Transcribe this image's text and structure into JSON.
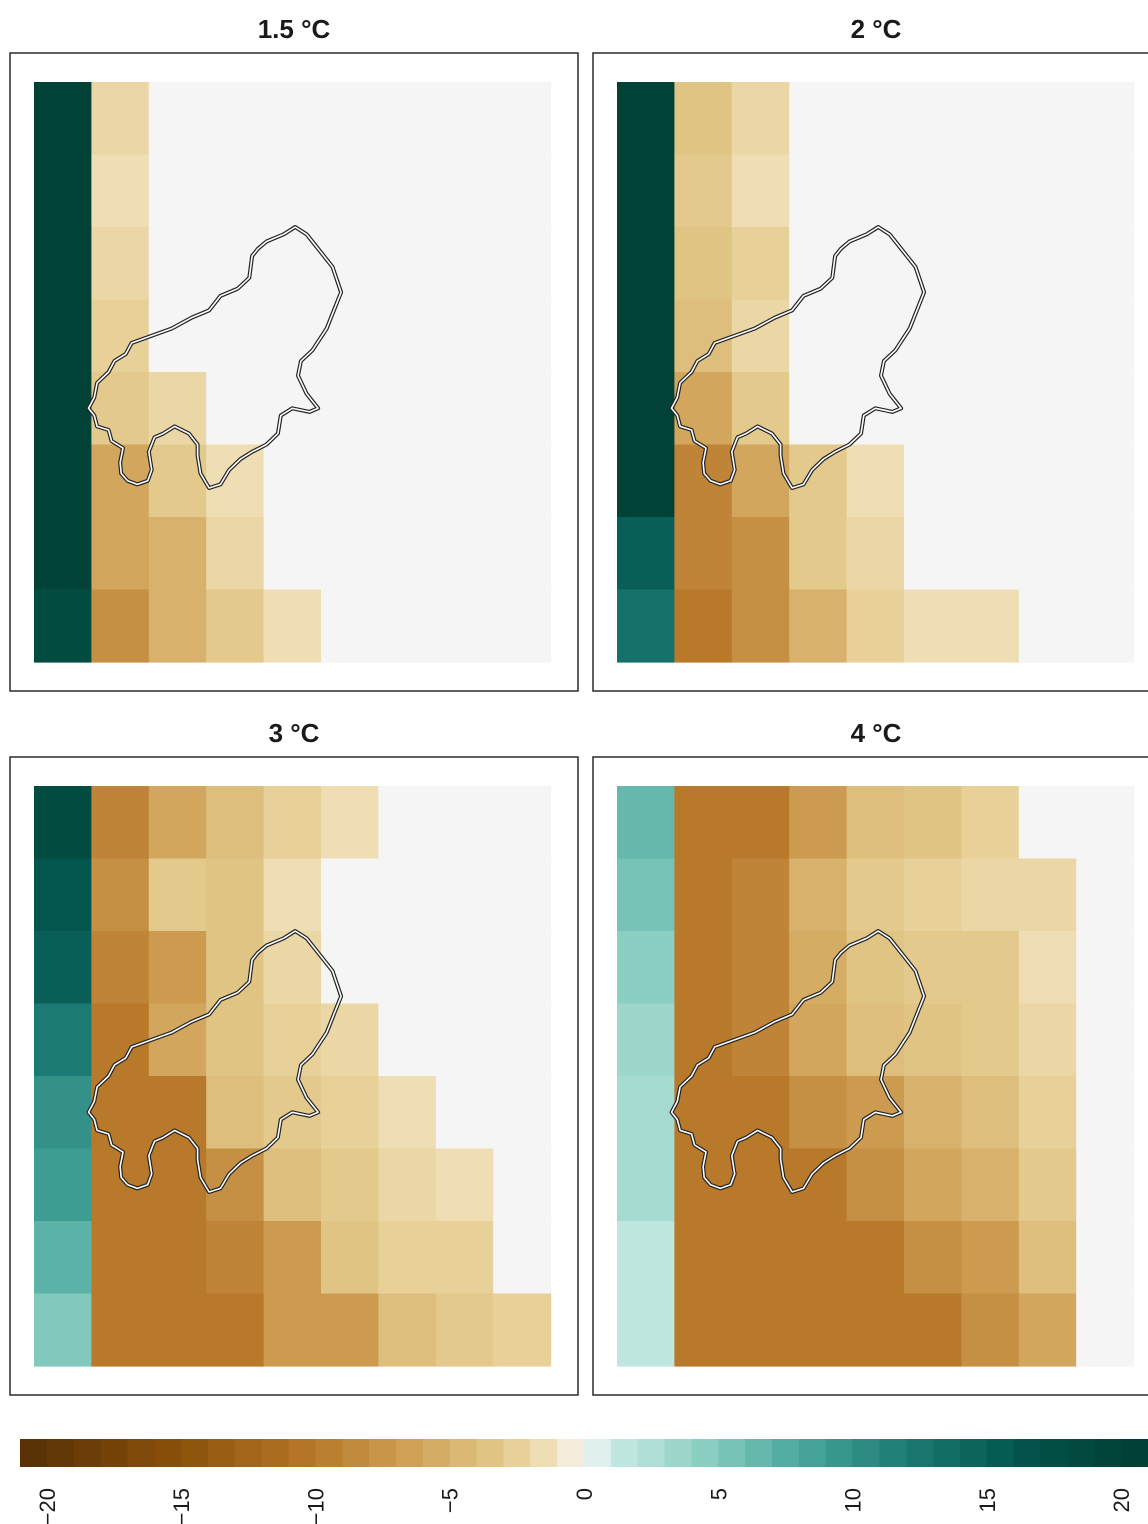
{
  "colorbar": {
    "ticks": [
      -20,
      -15,
      -10,
      -5,
      0,
      5,
      10,
      15,
      20
    ],
    "tick_labels": [
      "−20",
      "−15",
      "−10",
      "−5",
      "0",
      "5",
      "10",
      "15",
      "20"
    ],
    "min": -21,
    "max": 21,
    "palette": [
      {
        "v": -21,
        "c": "#543005"
      },
      {
        "v": -15,
        "c": "#8c510a"
      },
      {
        "v": -10,
        "c": "#b8792a"
      },
      {
        "v": -6,
        "c": "#d2a65c"
      },
      {
        "v": -3,
        "c": "#e3ca8c"
      },
      {
        "v": -1,
        "c": "#f3e4c0"
      },
      {
        "v": 0,
        "c": "#f5f5f5"
      },
      {
        "v": 1,
        "c": "#c9ebe4"
      },
      {
        "v": 4,
        "c": "#94d3c7"
      },
      {
        "v": 8,
        "c": "#4aa89d"
      },
      {
        "v": 12,
        "c": "#1b7a73"
      },
      {
        "v": 16,
        "c": "#03564d"
      },
      {
        "v": 21,
        "c": "#003c30"
      }
    ]
  },
  "chart_data": [
    {
      "type": "heatmap",
      "title": "1.5 °C",
      "grid": [
        [
          20,
          -2,
          0,
          0,
          0,
          0,
          0,
          0,
          0
        ],
        [
          20,
          -1.5,
          0,
          0,
          0,
          0,
          0,
          0,
          0
        ],
        [
          20,
          -2,
          0,
          0,
          0,
          0,
          0,
          0,
          0
        ],
        [
          20,
          -2.5,
          0,
          0,
          0,
          0,
          0,
          0,
          0
        ],
        [
          20,
          -3,
          -2,
          0,
          0,
          0,
          0,
          0,
          0
        ],
        [
          20,
          -6,
          -3,
          -1.5,
          0,
          0,
          0,
          0,
          0
        ],
        [
          20,
          -6,
          -5,
          -2,
          0,
          0,
          0,
          0,
          0
        ],
        [
          18,
          -8,
          -5,
          -3,
          -1.5,
          0,
          0,
          0,
          0
        ]
      ]
    },
    {
      "type": "heatmap",
      "title": "2 °C",
      "grid": [
        [
          20,
          -3.5,
          -2,
          0,
          0,
          0,
          0,
          0,
          0
        ],
        [
          20,
          -3,
          -1.5,
          0,
          0,
          0,
          0,
          0,
          0
        ],
        [
          20,
          -3.5,
          -2.5,
          0,
          0,
          0,
          0,
          0,
          0
        ],
        [
          20,
          -4,
          -2,
          0,
          0,
          0,
          0,
          0,
          0
        ],
        [
          20,
          -6,
          -3,
          0,
          0,
          0,
          0,
          0,
          0
        ],
        [
          20,
          -9,
          -6,
          -3,
          -1.5,
          0,
          0,
          0,
          0
        ],
        [
          15,
          -9,
          -8,
          -3,
          -2,
          0,
          0,
          0,
          0
        ],
        [
          13,
          -10,
          -8,
          -5,
          -2.5,
          -1.5,
          -1.5,
          0,
          0
        ]
      ]
    },
    {
      "type": "heatmap",
      "title": "3 °C",
      "grid": [
        [
          18,
          -9,
          -6,
          -4,
          -2.5,
          -1.5,
          0,
          0,
          0
        ],
        [
          16,
          -8,
          -3,
          -3.5,
          -1.5,
          0,
          0,
          0,
          0
        ],
        [
          15,
          -9,
          -7,
          -3.5,
          -2,
          0,
          0,
          0,
          0
        ],
        [
          12,
          -10,
          -6,
          -3.5,
          -2.5,
          -2,
          0,
          0,
          0
        ],
        [
          10,
          -10,
          -10,
          -4,
          -3,
          -2.5,
          -1.5,
          0,
          0
        ],
        [
          9,
          -10,
          -10,
          -8,
          -4,
          -3,
          -2,
          -1.5,
          0
        ],
        [
          7,
          -10,
          -10,
          -9,
          -7,
          -3.5,
          -2.5,
          -2.5,
          0
        ],
        [
          5,
          -10,
          -10,
          -10,
          -7,
          -7,
          -4,
          -3,
          -2.5
        ]
      ]
    },
    {
      "type": "heatmap",
      "title": "4 °C",
      "grid": [
        [
          6.5,
          -10,
          -10,
          -7,
          -4,
          -3.5,
          -2.5,
          0,
          0
        ],
        [
          5.5,
          -10,
          -9,
          -5,
          -3,
          -2.5,
          -2,
          -2,
          0
        ],
        [
          4.5,
          -10,
          -9,
          -5.5,
          -3.5,
          -3,
          -3,
          -1.5,
          0
        ],
        [
          3.5,
          -10,
          -9,
          -6,
          -4,
          -3.5,
          -3,
          -2,
          0
        ],
        [
          3,
          -10,
          -10,
          -8,
          -7,
          -5,
          -4,
          -2.5,
          0
        ],
        [
          3,
          -10,
          -10,
          -10,
          -8,
          -6,
          -5,
          -3,
          0
        ],
        [
          1.5,
          -10,
          -10,
          -10,
          -10,
          -8,
          -7,
          -4,
          0
        ],
        [
          1.5,
          -10,
          -10,
          -10,
          -10,
          -10,
          -8,
          -6,
          0
        ]
      ]
    }
  ]
}
